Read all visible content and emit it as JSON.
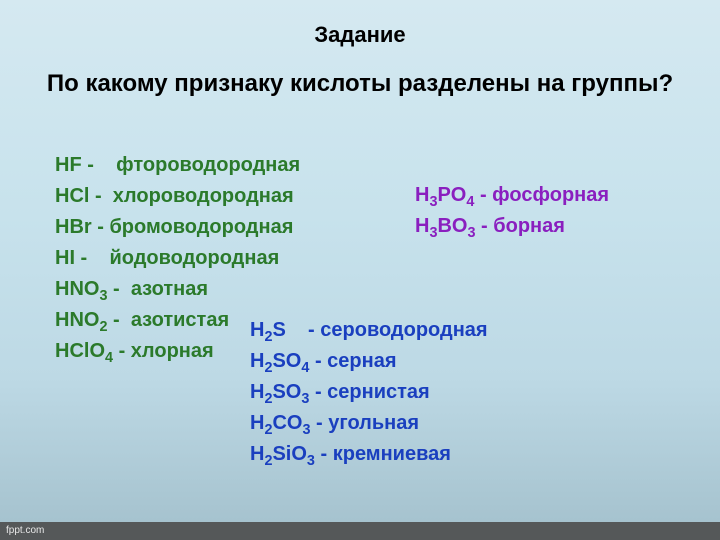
{
  "title": "Задание",
  "question": "По какому признаку кислоты разделены на группы?",
  "colors": {
    "group_a": "#2b7a2b",
    "group_b": "#1a3fbf",
    "group_c": "#8a1fbf",
    "title": "#000000",
    "question": "#000000",
    "footer_bg": "#555859",
    "footer_text": "#e8e8e8"
  },
  "group_a": {
    "items": [
      {
        "formula_html": "HF",
        "dash": " -    ",
        "name": "фтороводородная"
      },
      {
        "formula_html": "HCl",
        "dash": " -  ",
        "name": "хлороводородная"
      },
      {
        "formula_html": "HBr",
        "dash": " - ",
        "name": "бромоводородная"
      },
      {
        "formula_html": "HI",
        "dash": " -    ",
        "name": "йодоводородная"
      },
      {
        "formula_html": "HNO<sub>3</sub>",
        "dash": " -  ",
        "name": "азотная"
      },
      {
        "formula_html": "HNO<sub>2</sub>",
        "dash": " -  ",
        "name": "азотистая"
      },
      {
        "formula_html": "HClO<sub>4</sub>",
        "dash": " - ",
        "name": "хлорная"
      }
    ]
  },
  "group_b": {
    "items": [
      {
        "formula_html": "H<sub>2</sub>S",
        "dash": "    - ",
        "name": "сероводородная"
      },
      {
        "formula_html": "H<sub>2</sub>SO<sub>4</sub>",
        "dash": " - ",
        "name": "серная"
      },
      {
        "formula_html": "H<sub>2</sub>SO<sub>3</sub>",
        "dash": " - ",
        "name": "сернистая"
      },
      {
        "formula_html": "H<sub>2</sub>CO<sub>3</sub>",
        "dash": " - ",
        "name": "угольная"
      },
      {
        "formula_html": "H<sub>2</sub>SiO<sub>3</sub>",
        "dash": " - ",
        "name": "кремниевая"
      }
    ]
  },
  "group_c": {
    "items": [
      {
        "formula_html": "H<sub>3</sub>PO<sub>4</sub>",
        "dash": " - ",
        "name": "фосфорная"
      },
      {
        "formula_html": "H<sub>3</sub>BO<sub>3</sub>",
        "dash": " - ",
        "name": "борная"
      }
    ]
  },
  "footer": "fppt.com"
}
